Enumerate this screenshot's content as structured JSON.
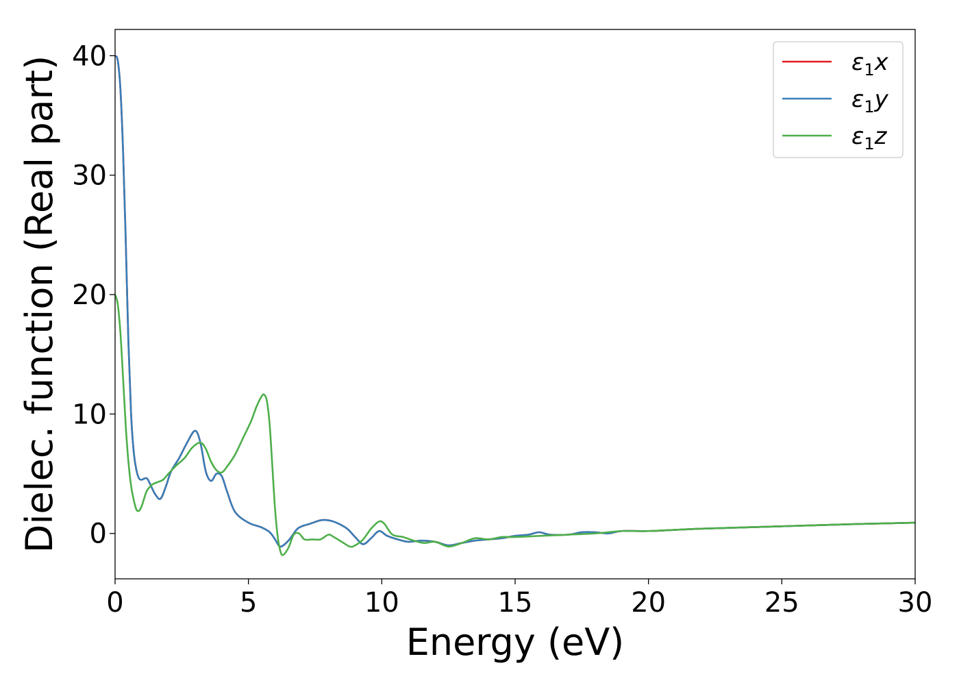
{
  "chart_data": {
    "type": "line",
    "xlabel": "Energy (eV)",
    "ylabel": "Dielec. function (Real part)",
    "xlim": [
      0,
      30
    ],
    "ylim": [
      -3.8,
      42.2
    ],
    "xticks": [
      0,
      5,
      10,
      15,
      20,
      25,
      30
    ],
    "yticks": [
      0,
      10,
      20,
      30,
      40
    ],
    "grid": false,
    "legend_position": "top-right",
    "series": [
      {
        "name": "ε₁x",
        "label_main": "ε",
        "label_sub": "1",
        "label_suffix": "x",
        "color": "#e41a1c",
        "x": [
          0,
          0.1,
          0.2,
          0.3,
          0.4,
          0.5,
          0.6,
          0.7,
          0.8,
          0.9,
          1.0,
          1.1,
          1.2,
          1.3,
          1.5,
          1.7,
          1.9,
          2.1,
          2.4,
          2.7,
          3.0,
          3.2,
          3.4,
          3.6,
          3.8,
          4.0,
          4.2,
          4.5,
          5.0,
          5.5,
          5.8,
          6.0,
          6.2,
          6.5,
          6.8,
          7.0,
          7.3,
          7.7,
          8.0,
          8.3,
          8.7,
          9.0,
          9.3,
          9.6,
          9.9,
          10.2,
          10.6,
          11.0,
          11.5,
          12.0,
          12.5,
          13.0,
          13.5,
          14.0,
          14.5,
          15.0,
          15.5,
          15.9,
          16.3,
          17.0,
          17.5,
          18.0,
          18.5,
          19.0,
          20.0,
          21.0,
          22.0,
          25.0,
          28.0,
          30.0
        ],
        "y": [
          40.0,
          39.6,
          37.2,
          32.0,
          24.5,
          16.0,
          10.0,
          6.8,
          5.3,
          4.6,
          4.5,
          4.6,
          4.6,
          4.2,
          3.3,
          2.9,
          3.9,
          5.2,
          6.3,
          7.6,
          8.6,
          7.6,
          5.2,
          4.4,
          5.0,
          4.8,
          3.5,
          1.8,
          0.9,
          0.5,
          0.1,
          -0.5,
          -1.1,
          -0.6,
          0.3,
          0.6,
          0.8,
          1.1,
          1.1,
          0.9,
          0.4,
          -0.3,
          -0.9,
          -0.4,
          0.2,
          -0.2,
          -0.5,
          -0.7,
          -0.6,
          -0.7,
          -1.0,
          -0.8,
          -0.6,
          -0.5,
          -0.4,
          -0.2,
          -0.1,
          0.1,
          -0.1,
          -0.1,
          0.1,
          0.1,
          0.0,
          0.2,
          0.2,
          0.3,
          0.4,
          0.6,
          0.8,
          0.9
        ]
      },
      {
        "name": "ε₁y",
        "label_main": "ε",
        "label_sub": "1",
        "label_suffix": "y",
        "color": "#377eb8",
        "x": [
          0,
          0.1,
          0.2,
          0.3,
          0.4,
          0.5,
          0.6,
          0.7,
          0.8,
          0.9,
          1.0,
          1.1,
          1.2,
          1.3,
          1.5,
          1.7,
          1.9,
          2.1,
          2.4,
          2.7,
          3.0,
          3.2,
          3.4,
          3.6,
          3.8,
          4.0,
          4.2,
          4.5,
          5.0,
          5.5,
          5.8,
          6.0,
          6.2,
          6.5,
          6.8,
          7.0,
          7.3,
          7.7,
          8.0,
          8.3,
          8.7,
          9.0,
          9.3,
          9.6,
          9.9,
          10.2,
          10.6,
          11.0,
          11.5,
          12.0,
          12.5,
          13.0,
          13.5,
          14.0,
          14.5,
          15.0,
          15.5,
          15.9,
          16.3,
          17.0,
          17.5,
          18.0,
          18.5,
          19.0,
          20.0,
          21.0,
          22.0,
          25.0,
          28.0,
          30.0
        ],
        "y": [
          40.0,
          39.6,
          37.2,
          32.0,
          24.5,
          16.0,
          10.0,
          6.8,
          5.3,
          4.6,
          4.5,
          4.6,
          4.6,
          4.2,
          3.3,
          2.9,
          3.9,
          5.2,
          6.3,
          7.6,
          8.6,
          7.6,
          5.2,
          4.4,
          5.0,
          4.8,
          3.5,
          1.8,
          0.9,
          0.5,
          0.1,
          -0.5,
          -1.1,
          -0.6,
          0.3,
          0.6,
          0.8,
          1.1,
          1.1,
          0.9,
          0.4,
          -0.3,
          -0.9,
          -0.4,
          0.2,
          -0.2,
          -0.5,
          -0.7,
          -0.6,
          -0.7,
          -1.0,
          -0.8,
          -0.6,
          -0.5,
          -0.4,
          -0.2,
          -0.1,
          0.1,
          -0.1,
          -0.1,
          0.1,
          0.1,
          0.0,
          0.2,
          0.2,
          0.3,
          0.4,
          0.6,
          0.8,
          0.9
        ]
      },
      {
        "name": "ε₁z",
        "label_main": "ε",
        "label_sub": "1",
        "label_suffix": "z",
        "color": "#4daf4a",
        "x": [
          0,
          0.1,
          0.2,
          0.3,
          0.4,
          0.5,
          0.6,
          0.7,
          0.8,
          0.9,
          1.0,
          1.1,
          1.2,
          1.4,
          1.6,
          1.8,
          2.0,
          2.3,
          2.6,
          2.9,
          3.2,
          3.4,
          3.6,
          3.8,
          4.0,
          4.2,
          4.5,
          4.8,
          5.1,
          5.3,
          5.5,
          5.6,
          5.7,
          5.8,
          5.9,
          6.0,
          6.1,
          6.2,
          6.3,
          6.5,
          6.7,
          6.9,
          7.1,
          7.4,
          7.7,
          8.0,
          8.2,
          8.5,
          8.8,
          9.0,
          9.3,
          9.6,
          9.9,
          10.1,
          10.4,
          10.8,
          11.2,
          11.6,
          12.0,
          12.5,
          13.0,
          13.5,
          14.0,
          14.5,
          15.0,
          16.0,
          17.0,
          18.0,
          19.0,
          20.0,
          22.0,
          25.0,
          28.0,
          30.0
        ],
        "y": [
          20.0,
          19.2,
          16.8,
          13.0,
          9.0,
          6.0,
          4.0,
          2.8,
          2.0,
          1.9,
          2.3,
          3.0,
          3.6,
          4.1,
          4.3,
          4.5,
          5.0,
          5.7,
          6.3,
          7.2,
          7.6,
          7.1,
          6.0,
          5.3,
          5.1,
          5.6,
          6.6,
          8.0,
          9.4,
          10.6,
          11.5,
          11.6,
          11.0,
          9.0,
          5.5,
          2.0,
          -0.3,
          -1.5,
          -1.8,
          -1.2,
          -0.1,
          0.0,
          -0.5,
          -0.5,
          -0.5,
          -0.1,
          -0.3,
          -0.7,
          -1.1,
          -1.0,
          -0.5,
          0.4,
          1.0,
          0.8,
          -0.1,
          -0.3,
          -0.6,
          -0.8,
          -0.7,
          -1.1,
          -0.8,
          -0.4,
          -0.5,
          -0.3,
          -0.3,
          -0.2,
          -0.1,
          0.0,
          0.2,
          0.2,
          0.4,
          0.6,
          0.8,
          0.9
        ]
      }
    ]
  }
}
